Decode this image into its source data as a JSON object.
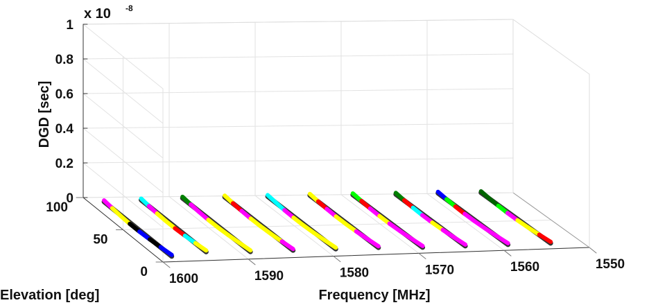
{
  "chart_data": {
    "type": "line3d",
    "title": "",
    "zlabel": "DGD [sec]",
    "xlabel": "Frequency [MHz]",
    "ylabel": "Elevation [deg]",
    "z_exponent_label": "x 10",
    "z_exponent": "-8",
    "zlim": [
      0,
      1
    ],
    "xlim": [
      1550,
      1600
    ],
    "ylim": [
      0,
      100
    ],
    "z_ticks": [
      "0",
      "0.2",
      "0.4",
      "0.6",
      "0.8",
      "1"
    ],
    "x_ticks": [
      "1600",
      "1590",
      "1580",
      "1570",
      "1560",
      "1550"
    ],
    "y_ticks": [
      "0",
      "50",
      "100"
    ],
    "grid": true,
    "series": [
      {
        "frequency": 1598.5,
        "elevation": [
          90,
          5
        ],
        "dgd": 0.02,
        "colors": [
          "#ff00ff",
          "#ffff00",
          "#ffff00",
          "#000000",
          "#0000ff",
          "#000000",
          "#0000ff"
        ]
      },
      {
        "frequency": 1594,
        "elevation": [
          92,
          10
        ],
        "dgd": 0.02,
        "colors": [
          "#00ffff",
          "#ff00ff",
          "#ffff00",
          "#ffff00",
          "#ff0000",
          "#00ffff",
          "#ffff00"
        ]
      },
      {
        "frequency": 1589,
        "elevation": [
          94,
          8
        ],
        "dgd": 0.02,
        "colors": [
          "#008000",
          "#ff00ff",
          "#ff00ff",
          "#ffff00",
          "#ffff00",
          "#ffff00",
          "#ffff00"
        ]
      },
      {
        "frequency": 1584,
        "elevation": [
          95,
          8
        ],
        "dgd": 0.02,
        "colors": [
          "#ffff00",
          "#ff0000",
          "#ff00ff",
          "#ffff00",
          "#ffff00",
          "#ffff00",
          "#ff00ff"
        ]
      },
      {
        "frequency": 1579,
        "elevation": [
          95,
          8
        ],
        "dgd": 0.02,
        "colors": [
          "#00ffff",
          "#00ffff",
          "#ff00ff",
          "#ffff00",
          "#ffff00",
          "#ffff00",
          "#ffff00"
        ]
      },
      {
        "frequency": 1574,
        "elevation": [
          96,
          8
        ],
        "dgd": 0.02,
        "colors": [
          "#ffff00",
          "#ff0000",
          "#ff00ff",
          "#ffff00",
          "#ffff00",
          "#ff00ff",
          "#ff00ff"
        ]
      },
      {
        "frequency": 1569,
        "elevation": [
          96,
          6
        ],
        "dgd": 0.02,
        "colors": [
          "#00ff00",
          "#ff0000",
          "#ff00ff",
          "#ffff00",
          "#ff00ff",
          "#ff00ff",
          "#ff00ff"
        ]
      },
      {
        "frequency": 1564,
        "elevation": [
          96,
          6
        ],
        "dgd": 0.02,
        "colors": [
          "#008000",
          "#ff0000",
          "#00ffff",
          "#ff00ff",
          "#ffff00",
          "#ff00ff",
          "#ff00ff"
        ]
      },
      {
        "frequency": 1559,
        "elevation": [
          97,
          6
        ],
        "dgd": 0.02,
        "colors": [
          "#0000ff",
          "#00ff00",
          "#ff0000",
          "#ff00ff",
          "#ff00ff",
          "#ff00ff",
          "#ff00ff"
        ]
      },
      {
        "frequency": 1554,
        "elevation": [
          97,
          6
        ],
        "dgd": 0.02,
        "colors": [
          "#006400",
          "#006400",
          "#00ff00",
          "#ff00ff",
          "#ffff00",
          "#ffff00",
          "#ff0000"
        ]
      }
    ]
  }
}
